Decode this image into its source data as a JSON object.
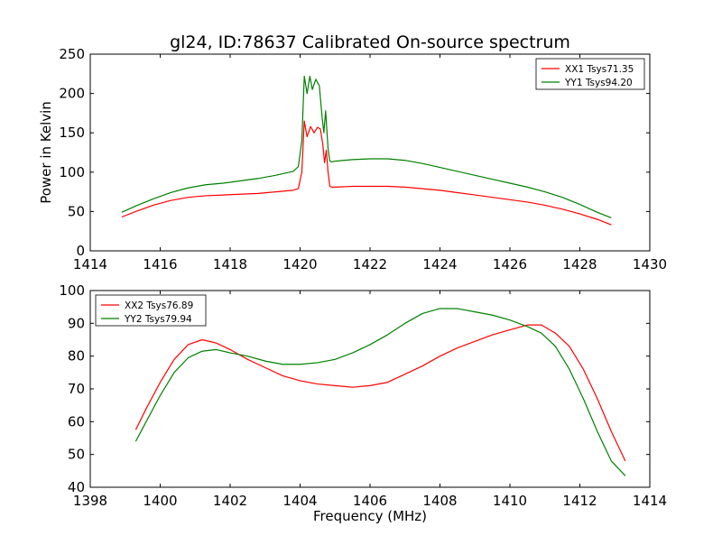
{
  "figure": {
    "title": "gl24, ID:78637 Calibrated On-source spectrum"
  },
  "colors": {
    "xx": "#ff0000",
    "yy": "#008000",
    "axes": "#000000",
    "background": "#ffffff"
  },
  "chart_data": [
    {
      "type": "line",
      "title": "gl24, ID:78637 Calibrated On-source spectrum",
      "xlabel": "",
      "ylabel": "Power in Kelvin",
      "xlim": [
        1414,
        1430
      ],
      "ylim": [
        0,
        250
      ],
      "xticks": [
        "1414",
        "1416",
        "1418",
        "1420",
        "1422",
        "1424",
        "1426",
        "1428",
        "1430"
      ],
      "yticks": [
        "0",
        "50",
        "100",
        "150",
        "200",
        "250"
      ],
      "grid": false,
      "legend_position": "top-right",
      "series": [
        {
          "name": "XX1 Tsys71.35",
          "color": "#ff0000",
          "x": [
            1414.9,
            1415.3,
            1415.8,
            1416.3,
            1416.8,
            1417.3,
            1417.8,
            1418.3,
            1418.8,
            1419.3,
            1419.8,
            1419.95,
            1420.05,
            1420.12,
            1420.2,
            1420.3,
            1420.4,
            1420.5,
            1420.58,
            1420.65,
            1420.7,
            1420.75,
            1420.8,
            1420.85,
            1420.9,
            1421.0,
            1421.5,
            1422.0,
            1422.5,
            1423.0,
            1423.5,
            1424.0,
            1424.5,
            1425.0,
            1425.5,
            1426.0,
            1426.5,
            1427.0,
            1427.5,
            1428.0,
            1428.5,
            1428.9
          ],
          "y": [
            43,
            50,
            58,
            64,
            68,
            70,
            71,
            72,
            73,
            75,
            77,
            79,
            100,
            165,
            145,
            158,
            150,
            157,
            155,
            135,
            112,
            128,
            100,
            82,
            81,
            81,
            82,
            82,
            82,
            81,
            79,
            77,
            74,
            71,
            68,
            65,
            62,
            58,
            53,
            47,
            40,
            33
          ]
        },
        {
          "name": "YY1 Tsys94.20",
          "color": "#008000",
          "x": [
            1414.9,
            1415.3,
            1415.8,
            1416.3,
            1416.8,
            1417.3,
            1417.8,
            1418.3,
            1418.8,
            1419.3,
            1419.8,
            1419.95,
            1420.05,
            1420.12,
            1420.2,
            1420.28,
            1420.35,
            1420.45,
            1420.55,
            1420.63,
            1420.68,
            1420.73,
            1420.8,
            1420.85,
            1420.9,
            1421.0,
            1421.5,
            1422.0,
            1422.5,
            1423.0,
            1423.5,
            1424.0,
            1424.5,
            1425.0,
            1425.5,
            1426.0,
            1426.5,
            1427.0,
            1427.5,
            1428.0,
            1428.5,
            1428.9
          ],
          "y": [
            49,
            57,
            66,
            74,
            80,
            84,
            86,
            89,
            92,
            96,
            101,
            107,
            140,
            222,
            200,
            222,
            205,
            218,
            210,
            170,
            150,
            178,
            130,
            114,
            113,
            114,
            116,
            117,
            117,
            115,
            111,
            106,
            101,
            96,
            91,
            86,
            81,
            75,
            68,
            59,
            49,
            42
          ]
        }
      ]
    },
    {
      "type": "line",
      "title": "",
      "xlabel": "Frequency (MHz)",
      "ylabel": "",
      "xlim": [
        1398,
        1414
      ],
      "ylim": [
        40,
        100
      ],
      "xticks": [
        "1398",
        "1400",
        "1402",
        "1404",
        "1406",
        "1408",
        "1410",
        "1412",
        "1414"
      ],
      "yticks": [
        "40",
        "50",
        "60",
        "70",
        "80",
        "90",
        "100"
      ],
      "grid": false,
      "legend_position": "top-left",
      "series": [
        {
          "name": "XX2 Tsys76.89",
          "color": "#ff0000",
          "x": [
            1399.3,
            1399.6,
            1400.0,
            1400.4,
            1400.8,
            1401.2,
            1401.6,
            1402.0,
            1402.5,
            1403.0,
            1403.5,
            1404.0,
            1404.5,
            1405.0,
            1405.5,
            1406.0,
            1406.5,
            1407.0,
            1407.5,
            1408.0,
            1408.5,
            1409.0,
            1409.5,
            1410.0,
            1410.5,
            1410.9,
            1411.3,
            1411.7,
            1412.1,
            1412.5,
            1412.9,
            1413.3
          ],
          "y": [
            57.5,
            64,
            72,
            79,
            83.5,
            85,
            84,
            82,
            79,
            76.5,
            74,
            72.5,
            71.5,
            71,
            70.5,
            71,
            72,
            74.5,
            77,
            80,
            82.5,
            84.5,
            86.5,
            88,
            89.5,
            89.5,
            87,
            83,
            76,
            67,
            57,
            48
          ]
        },
        {
          "name": "YY2 Tsys79.94",
          "color": "#008000",
          "x": [
            1399.3,
            1399.6,
            1400.0,
            1400.4,
            1400.8,
            1401.2,
            1401.6,
            1402.0,
            1402.5,
            1403.0,
            1403.5,
            1404.0,
            1404.5,
            1405.0,
            1405.5,
            1406.0,
            1406.5,
            1407.0,
            1407.5,
            1408.0,
            1408.5,
            1409.0,
            1409.5,
            1410.0,
            1410.5,
            1410.9,
            1411.3,
            1411.7,
            1412.1,
            1412.5,
            1412.9,
            1413.3
          ],
          "y": [
            54,
            60,
            68,
            75,
            79.5,
            81.5,
            82,
            81,
            80,
            78.5,
            77.5,
            77.5,
            78,
            79,
            81,
            83.5,
            86.5,
            90,
            93,
            94.5,
            94.5,
            93.5,
            92.5,
            91,
            89,
            87,
            83,
            76,
            67,
            57,
            48,
            43.5
          ]
        }
      ]
    }
  ]
}
